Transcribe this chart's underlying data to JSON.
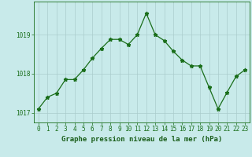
{
  "x": [
    0,
    1,
    2,
    3,
    4,
    5,
    6,
    7,
    8,
    9,
    10,
    11,
    12,
    13,
    14,
    15,
    16,
    17,
    18,
    19,
    20,
    21,
    22,
    23
  ],
  "y": [
    1017.1,
    1017.4,
    1017.5,
    1017.85,
    1017.85,
    1018.1,
    1018.4,
    1018.65,
    1018.88,
    1018.88,
    1018.75,
    1019.0,
    1019.55,
    1019.0,
    1018.85,
    1018.58,
    1018.35,
    1018.2,
    1018.2,
    1017.65,
    1017.1,
    1017.52,
    1017.93,
    1018.1
  ],
  "line_color": "#1a6e1a",
  "marker": "*",
  "marker_size": 3.5,
  "background_color": "#c8eaea",
  "grid_color": "#aacccc",
  "xlabel": "Graphe pression niveau de la mer (hPa)",
  "xlabel_color": "#1a5e1a",
  "xlabel_fontsize": 6.5,
  "tick_color": "#1a6e1a",
  "tick_fontsize": 5.5,
  "ylim": [
    1016.75,
    1019.85
  ],
  "yticks": [
    1017,
    1018,
    1019
  ],
  "xlim": [
    -0.5,
    23.5
  ],
  "xticks": [
    0,
    1,
    2,
    3,
    4,
    5,
    6,
    7,
    8,
    9,
    10,
    11,
    12,
    13,
    14,
    15,
    16,
    17,
    18,
    19,
    20,
    21,
    22,
    23
  ],
  "axis_border_color": "#1a6e1a",
  "line_width": 0.9
}
